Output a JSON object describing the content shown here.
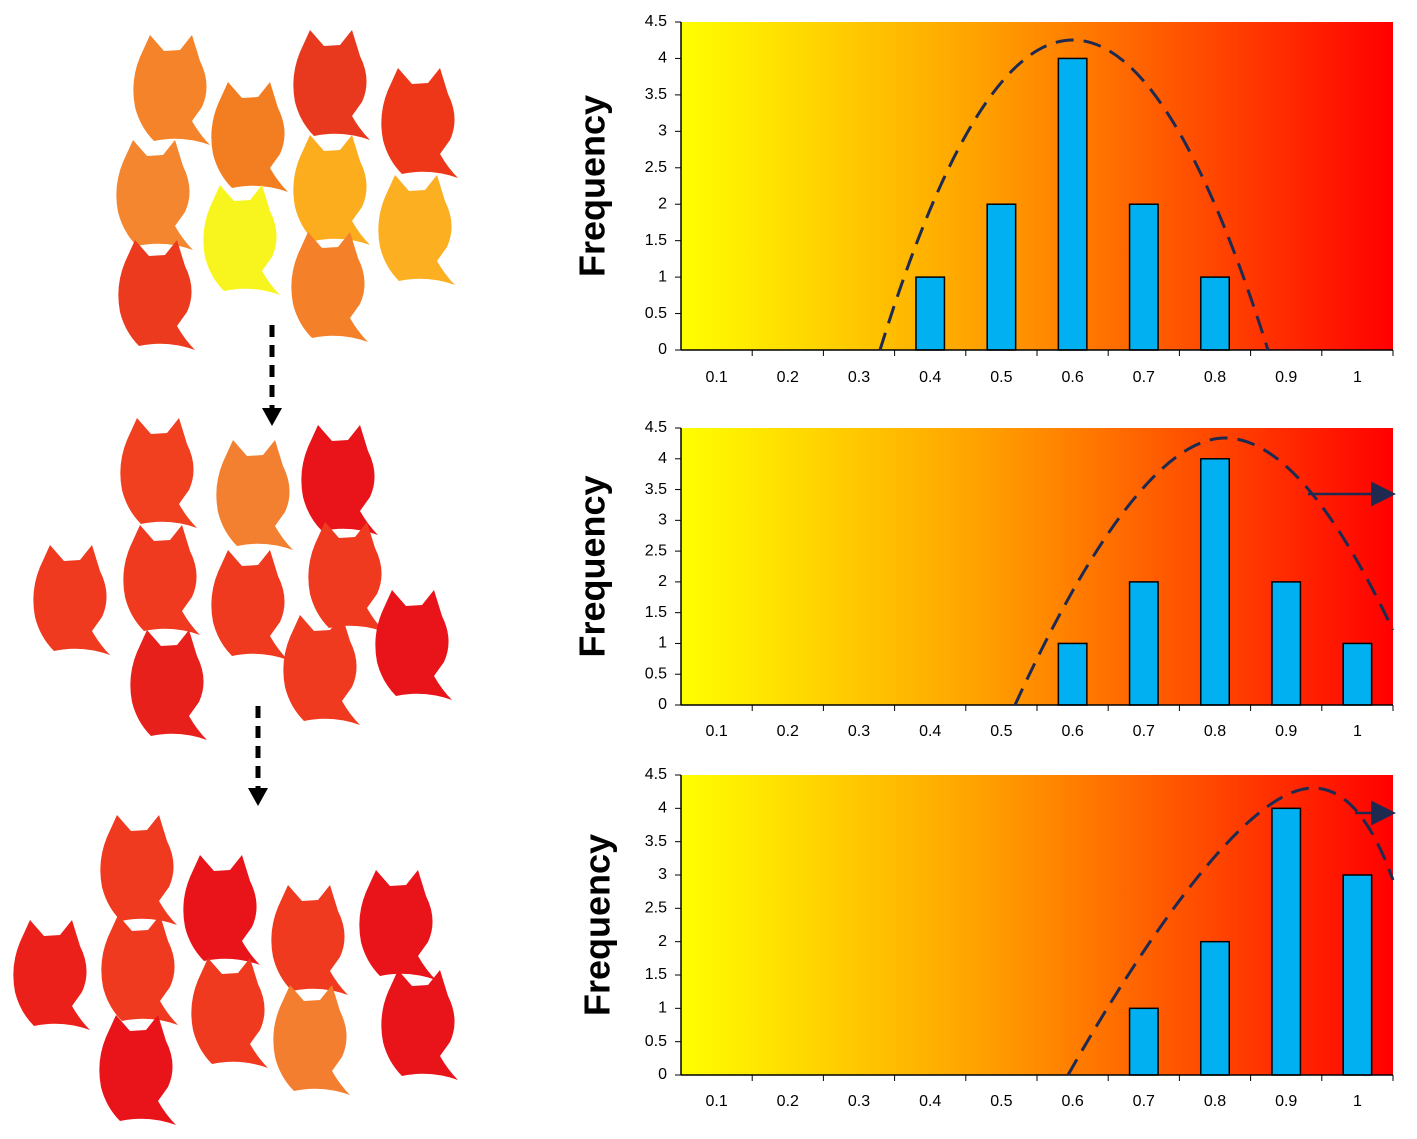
{
  "chart_data": [
    {
      "type": "bar",
      "y_label": "Frequency",
      "categories": [
        "0.1",
        "0.2",
        "0.3",
        "0.4",
        "0.5",
        "0.6",
        "0.7",
        "0.8",
        "0.9",
        "1"
      ],
      "values": [
        0,
        0,
        0,
        1,
        2,
        4,
        2,
        1,
        0,
        0
      ],
      "color": "#00b0f0",
      "ylim": [
        0,
        4.5
      ],
      "yticks": [
        0,
        0.5,
        1,
        1.5,
        2,
        2.5,
        3,
        3.5,
        4,
        4.5
      ]
    },
    {
      "type": "bar",
      "y_label": "Frequency",
      "categories": [
        "0.1",
        "0.2",
        "0.3",
        "0.4",
        "0.5",
        "0.6",
        "0.7",
        "0.8",
        "0.9",
        "1"
      ],
      "values": [
        0,
        0,
        0,
        0,
        0,
        1,
        2,
        4,
        2,
        1
      ],
      "color": "#00b0f0",
      "ylim": [
        0,
        4.5
      ],
      "yticks": [
        0,
        0.5,
        1,
        1.5,
        2,
        2.5,
        3,
        3.5,
        4,
        4.5
      ]
    },
    {
      "type": "bar",
      "y_label": "Frequency",
      "categories": [
        "0.1",
        "0.2",
        "0.3",
        "0.4",
        "0.5",
        "0.6",
        "0.7",
        "0.8",
        "0.9",
        "1"
      ],
      "values": [
        0,
        0,
        0,
        0,
        0,
        0,
        1,
        2,
        4,
        3
      ],
      "color": "#00b0f0",
      "ylim": [
        0,
        4.5
      ],
      "yticks": [
        0,
        0.5,
        1,
        1.5,
        2,
        2.5,
        3,
        3.5,
        4,
        4.5
      ]
    }
  ]
}
